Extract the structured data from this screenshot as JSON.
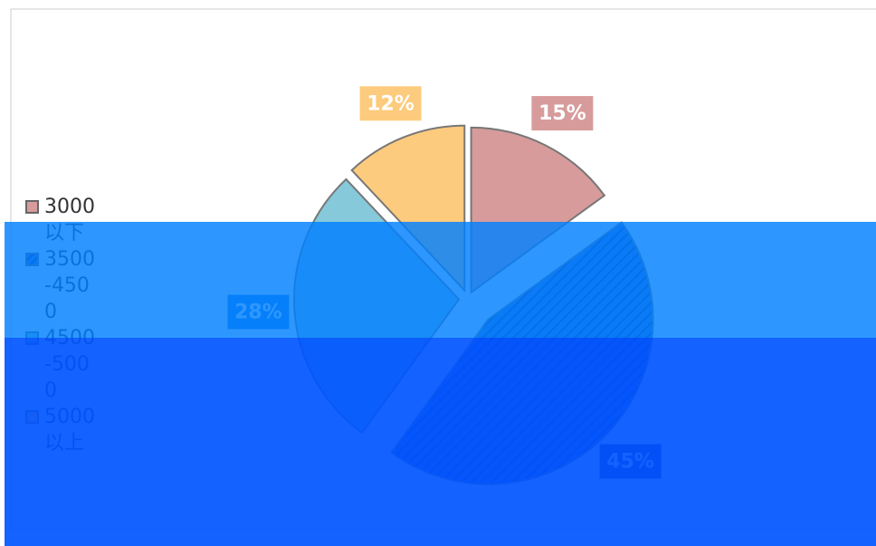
{
  "chart_data": {
    "type": "pie",
    "categories": [
      "3000以下",
      "3500-4500",
      "4500-5000",
      "5000以上"
    ],
    "values": [
      15,
      45,
      28,
      12
    ],
    "value_labels": [
      "15%",
      "45%",
      "28%",
      "12%"
    ],
    "colors": [
      "#d79b9b",
      "hatch",
      "#86c9db",
      "#fdcb7d"
    ]
  }
}
